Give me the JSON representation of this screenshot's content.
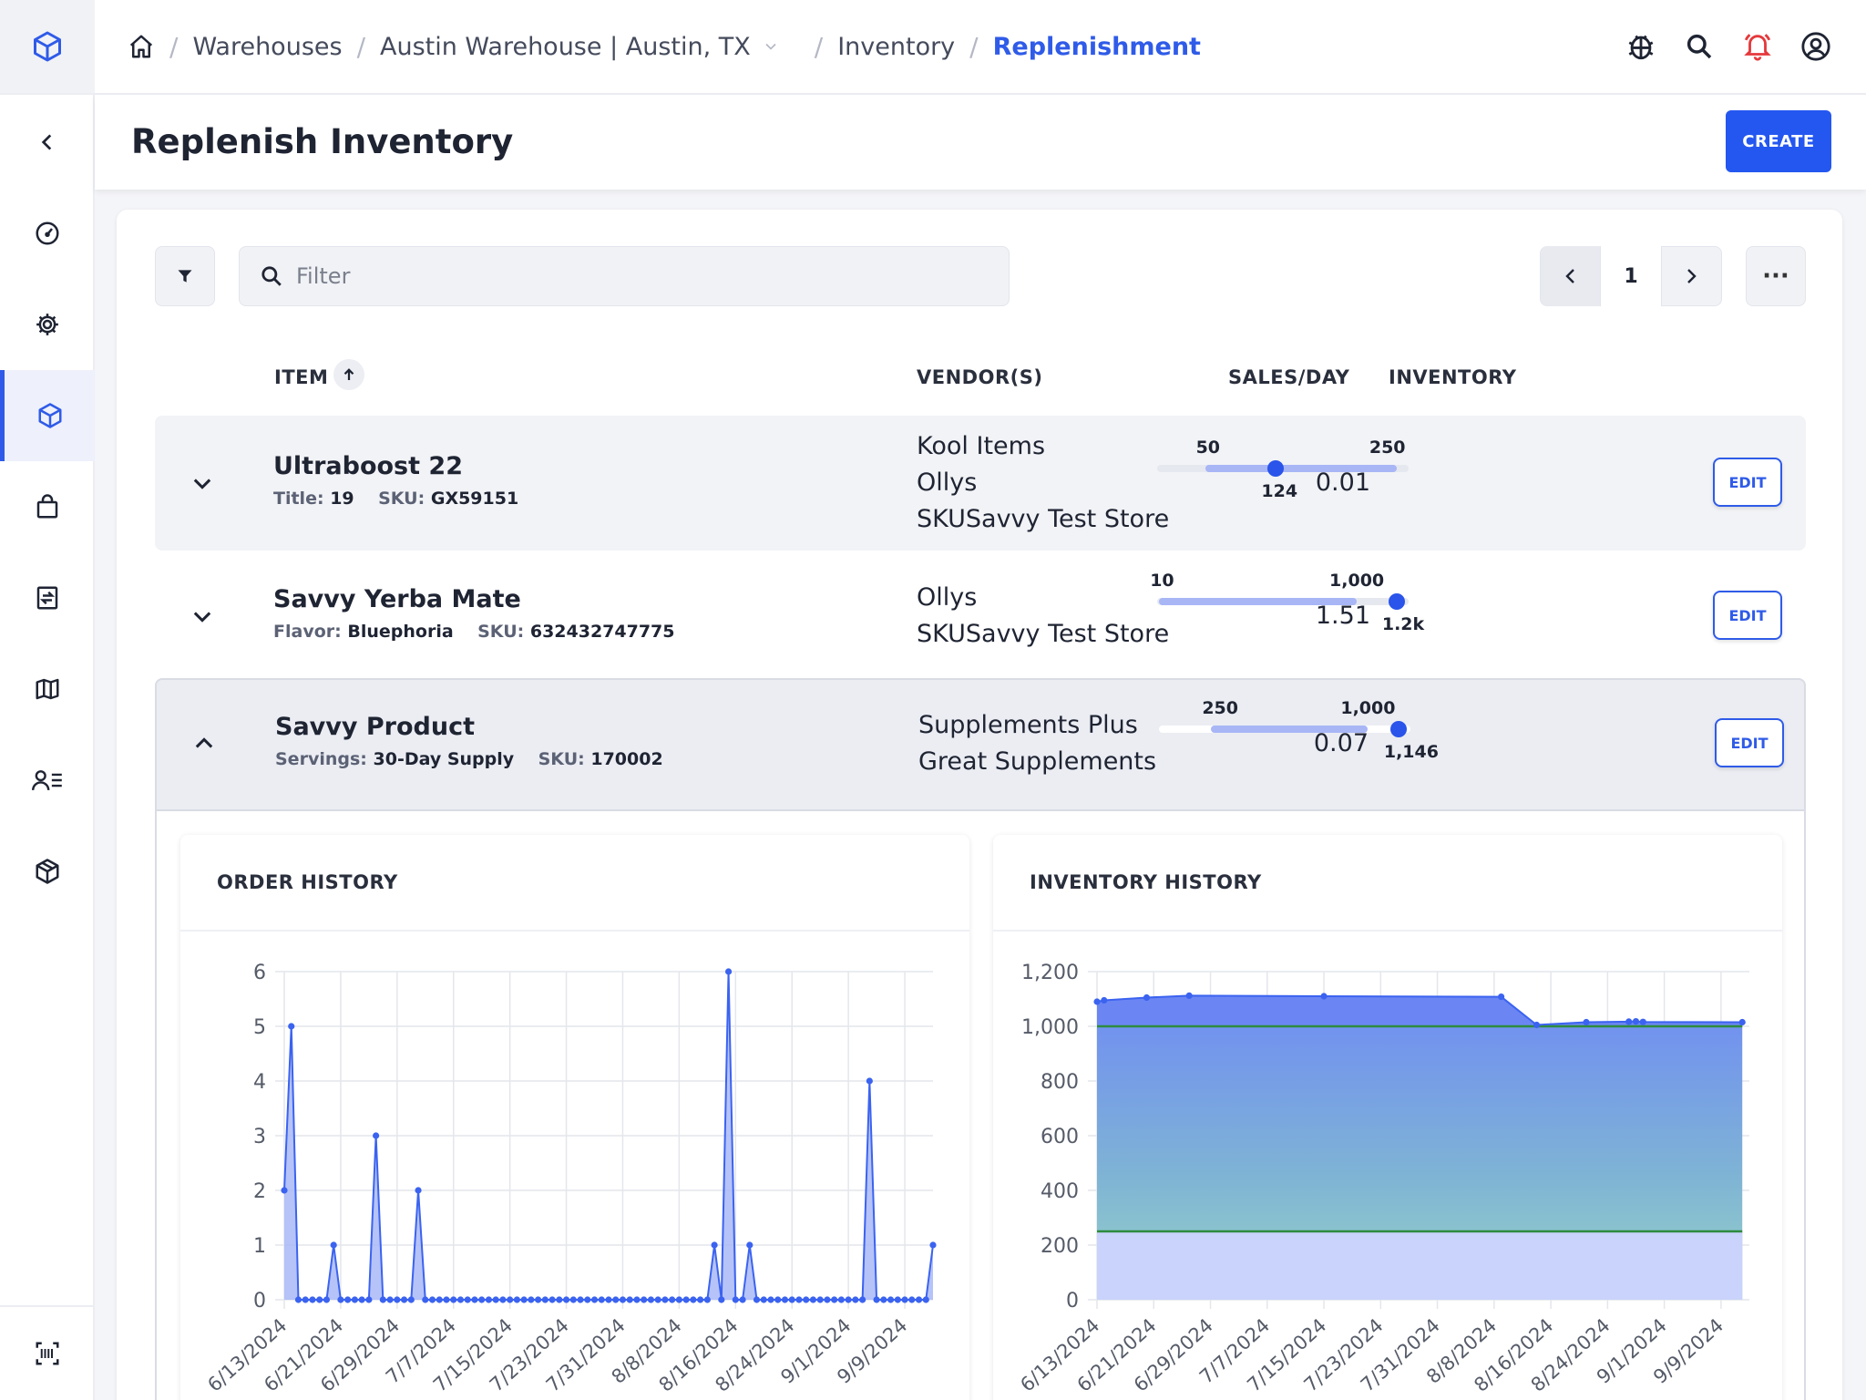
{
  "breadcrumb": {
    "items": [
      "Warehouses",
      "Austin Warehouse | Austin, TX",
      "Inventory"
    ],
    "active": "Replenishment"
  },
  "header": {
    "title": "Replenish Inventory",
    "create_label": "CREATE"
  },
  "toolbar": {
    "filter_placeholder": "Filter",
    "page": "1",
    "more": "···"
  },
  "table": {
    "columns": {
      "item": "ITEM",
      "vendors": "VENDOR(S)",
      "sales": "SALES/DAY",
      "inventory": "INVENTORY"
    },
    "edit_label": "EDIT",
    "rows": [
      {
        "name": "Ultraboost 22",
        "attr_key": "Title:",
        "attr_val": "19",
        "sku_key": "SKU:",
        "sku_val": "GX59151",
        "vendors": [
          "Kool Items",
          "Ollys",
          "SKUSavvy Test Store"
        ],
        "sales_per_day": "0.01",
        "inv_min": "50",
        "inv_max": "250",
        "inv_current": "124",
        "inv_current_value": 124,
        "inv_min_value": 50,
        "inv_max_value": 250
      },
      {
        "name": "Savvy Yerba Mate",
        "attr_key": "Flavor:",
        "attr_val": "Bluephoria",
        "sku_key": "SKU:",
        "sku_val": "632432747775",
        "vendors": [
          "Ollys",
          "SKUSavvy Test Store"
        ],
        "sales_per_day": "1.51",
        "inv_min": "10",
        "inv_max": "1,000",
        "inv_current": "1.2k",
        "inv_current_value": 1200,
        "inv_min_value": 10,
        "inv_max_value": 1000
      },
      {
        "name": "Savvy Product",
        "attr_key": "Servings:",
        "attr_val": "30-Day Supply",
        "sku_key": "SKU:",
        "sku_val": "170002",
        "vendors": [
          "Supplements Plus",
          "Great Supplements"
        ],
        "sales_per_day": "0.07",
        "inv_min": "250",
        "inv_max": "1,000",
        "inv_current": "1,146",
        "inv_current_value": 1146,
        "inv_min_value": 250,
        "inv_max_value": 1000
      }
    ]
  },
  "detail": {
    "order_history_title": "ORDER HISTORY",
    "inventory_history_title": "INVENTORY HISTORY"
  },
  "colors": {
    "accent": "#2f5be8",
    "line": "#3b63f0",
    "threshold": "#2e8b3e"
  },
  "chart_data": [
    {
      "type": "area",
      "title": "ORDER HISTORY",
      "ylim": [
        0,
        6
      ],
      "yticks": [
        "0",
        "1",
        "2",
        "3",
        "4",
        "5",
        "6"
      ],
      "xticks": [
        "6/13/2024",
        "6/21/2024",
        "6/29/2024",
        "7/7/2024",
        "7/15/2024",
        "7/23/2024",
        "7/31/2024",
        "8/8/2024",
        "8/16/2024",
        "8/24/2024",
        "9/1/2024",
        "9/9/2024"
      ],
      "grid": true,
      "x_day_offsets": [
        0,
        1,
        2,
        3,
        4,
        5,
        6,
        7,
        8,
        9,
        10,
        11,
        12,
        13,
        14,
        15,
        16,
        17,
        18,
        19,
        20,
        21,
        22,
        23,
        24,
        25,
        26,
        27,
        28,
        29,
        30,
        31,
        32,
        33,
        34,
        35,
        36,
        37,
        38,
        39,
        40,
        41,
        42,
        43,
        44,
        45,
        46,
        47,
        48,
        49,
        50,
        51,
        52,
        53,
        54,
        55,
        56,
        57,
        58,
        59,
        60,
        61,
        62,
        63,
        64,
        65,
        66,
        67,
        68,
        69,
        70,
        71,
        72,
        73,
        74,
        75,
        76,
        77,
        78,
        79,
        80,
        81,
        82,
        83,
        84,
        85,
        86,
        87,
        88,
        89,
        90,
        91,
        92
      ],
      "values": [
        2,
        5,
        0,
        0,
        0,
        0,
        0,
        1,
        0,
        0,
        0,
        0,
        0,
        3,
        0,
        0,
        0,
        0,
        0,
        2,
        0,
        0,
        0,
        0,
        0,
        0,
        0,
        0,
        0,
        0,
        0,
        0,
        0,
        0,
        0,
        0,
        0,
        0,
        0,
        0,
        0,
        0,
        0,
        0,
        0,
        0,
        0,
        0,
        0,
        0,
        0,
        0,
        0,
        0,
        0,
        0,
        0,
        0,
        0,
        0,
        0,
        1,
        0,
        6,
        0,
        0,
        1,
        0,
        0,
        0,
        0,
        0,
        0,
        0,
        0,
        0,
        0,
        0,
        0,
        0,
        0,
        0,
        0,
        4,
        0,
        0,
        0,
        0,
        0,
        0,
        0,
        0,
        1
      ]
    },
    {
      "type": "area",
      "title": "INVENTORY HISTORY",
      "ylim": [
        0,
        1200
      ],
      "yticks": [
        "0",
        "200",
        "400",
        "600",
        "800",
        "1,000",
        "1,200"
      ],
      "xticks": [
        "6/13/2024",
        "6/21/2024",
        "6/29/2024",
        "7/7/2024",
        "7/15/2024",
        "7/23/2024",
        "7/31/2024",
        "8/8/2024",
        "8/16/2024",
        "8/24/2024",
        "9/1/2024",
        "9/9/2024"
      ],
      "grid": true,
      "x_day_offsets": [
        0,
        1,
        7,
        13,
        32,
        57,
        62,
        69,
        75,
        76,
        77,
        91
      ],
      "values": [
        1090,
        1095,
        1105,
        1112,
        1110,
        1108,
        1005,
        1015,
        1017,
        1018,
        1016,
        1015
      ],
      "thresholds": [
        {
          "value": 1000,
          "color": "#2e8b3e"
        },
        {
          "value": 250,
          "color": "#2e8b3e"
        }
      ]
    }
  ]
}
